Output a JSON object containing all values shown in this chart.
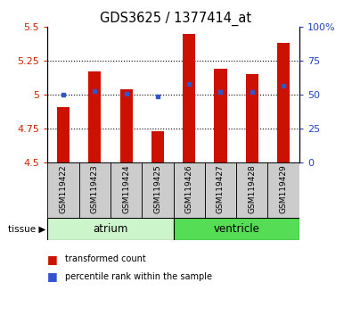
{
  "title": "GDS3625 / 1377414_at",
  "samples": [
    "GSM119422",
    "GSM119423",
    "GSM119424",
    "GSM119425",
    "GSM119426",
    "GSM119427",
    "GSM119428",
    "GSM119429"
  ],
  "red_values": [
    4.91,
    5.17,
    5.04,
    4.73,
    5.45,
    5.19,
    5.15,
    5.38
  ],
  "blue_values": [
    50,
    53,
    51,
    49,
    58,
    52,
    52,
    57
  ],
  "ylim_left": [
    4.5,
    5.5
  ],
  "ylim_right": [
    0,
    100
  ],
  "yticks_left": [
    4.5,
    4.75,
    5.0,
    5.25,
    5.5
  ],
  "yticks_right": [
    0,
    25,
    50,
    75,
    100
  ],
  "ytick_labels_left": [
    "4.5",
    "4.75",
    "5",
    "5.25",
    "5.5"
  ],
  "ytick_labels_right": [
    "0",
    "25",
    "50",
    "75",
    "100%"
  ],
  "groups": [
    {
      "name": "atrium",
      "indices": [
        0,
        1,
        2,
        3
      ],
      "color": "#ccf5cc"
    },
    {
      "name": "ventricle",
      "indices": [
        4,
        5,
        6,
        7
      ],
      "color": "#55dd55"
    }
  ],
  "bar_color": "#cc1100",
  "marker_color": "#3355cc",
  "base_value": 4.5,
  "bg_color": "#ffffff",
  "label_box_color": "#cccccc",
  "legend_items": [
    {
      "label": "transformed count",
      "color": "#cc1100"
    },
    {
      "label": "percentile rank within the sample",
      "color": "#3355cc"
    }
  ],
  "tissue_label": "tissue",
  "left_label_color": "#cc2200",
  "right_label_color": "#2244bb",
  "bar_width": 0.4
}
